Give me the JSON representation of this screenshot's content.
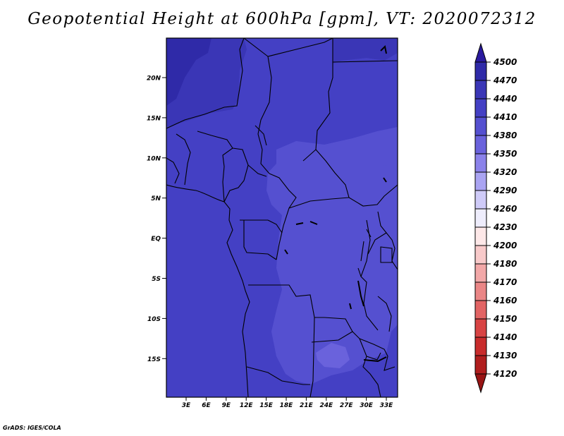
{
  "title": "Geopotential Height at 600hPa [gpm], VT: 2020072312",
  "footer": "GrADS: IGES/COLA",
  "map": {
    "lat_labels": [
      "20N",
      "15N",
      "10N",
      "5N",
      "EQ",
      "5S",
      "10S",
      "15S"
    ],
    "lon_labels": [
      "3E",
      "6E",
      "9E",
      "12E",
      "15E",
      "18E",
      "21E",
      "24E",
      "27E",
      "30E",
      "33E"
    ]
  },
  "colorbar": {
    "levels": [
      "4500",
      "4470",
      "4440",
      "4410",
      "4380",
      "4350",
      "4320",
      "4290",
      "4260",
      "4230",
      "4200",
      "4180",
      "4170",
      "4160",
      "4150",
      "4140",
      "4130",
      "4120"
    ],
    "colors": [
      "#2a1a9e",
      "#2f2aa8",
      "#3a36b6",
      "#4440c4",
      "#5550d0",
      "#6a62dc",
      "#8b82ea",
      "#aaa4f2",
      "#cfcbf8",
      "#eeedfc",
      "#fde8e8",
      "#f8caca",
      "#f2a8a8",
      "#ea8686",
      "#e26464",
      "#d84444",
      "#c82c2c",
      "#b01e1e",
      "#981414"
    ]
  }
}
